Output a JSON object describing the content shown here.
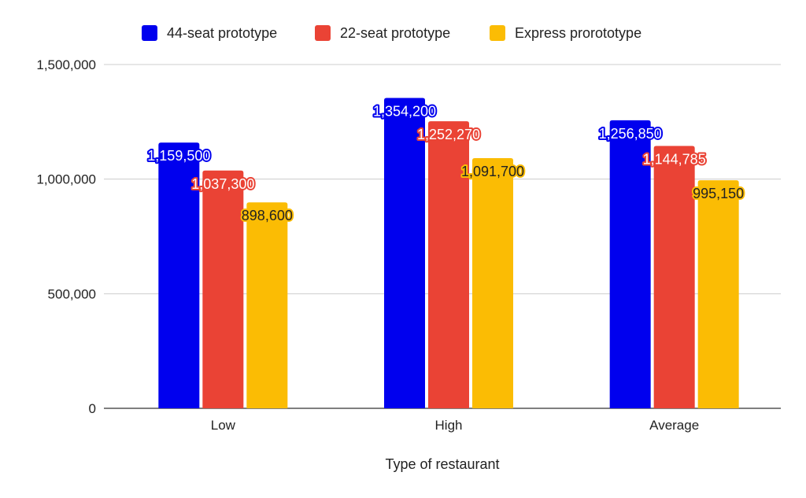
{
  "chart_data": {
    "type": "bar",
    "title": "",
    "xlabel": "Type of restaurant",
    "ylabel": "",
    "categories": [
      "Low",
      "High",
      "Average"
    ],
    "series": [
      {
        "name": "44-seat prototype",
        "color": "#0000ee",
        "values": [
          1159500,
          1354200,
          1256850
        ],
        "labels": [
          "1,159,500",
          "1,354,200",
          "1,256,850"
        ]
      },
      {
        "name": "22-seat prototype",
        "color": "#ea4335",
        "values": [
          1037300,
          1252270,
          1144785
        ],
        "labels": [
          "1,037,300",
          "1,252,270",
          "1,144,785"
        ]
      },
      {
        "name": "Express prorototype",
        "color": "#fbbc04",
        "values": [
          898600,
          1091700,
          995150
        ],
        "labels": [
          "898,600",
          "1,091,700",
          "995,150"
        ]
      }
    ],
    "ylim": [
      0,
      1500000
    ],
    "yticks": [
      0,
      500000,
      1000000,
      1500000
    ],
    "ytick_labels": [
      "0",
      "500,000",
      "1,000,000",
      "1,500,000"
    ],
    "grid": true,
    "legend_position": "top-center"
  }
}
